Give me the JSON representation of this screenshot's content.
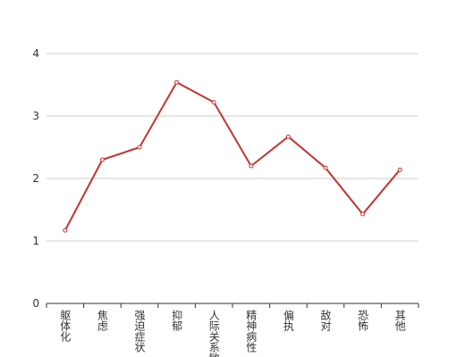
{
  "chart_data": {
    "type": "line",
    "categories": [
      "躯体化",
      "焦虑",
      "强迫症状",
      "抑郁",
      "人际关系敏感",
      "精神病性",
      "偏执",
      "敌对",
      "恐怖",
      "其他"
    ],
    "series": [
      {
        "color": "#c23531",
        "values": [
          1.17,
          2.3,
          2.5,
          3.54,
          3.22,
          2.2,
          2.67,
          2.17,
          1.43,
          2.14
        ]
      }
    ],
    "ylim": [
      0,
      4
    ],
    "yticks": [
      0,
      1,
      2,
      3,
      4
    ],
    "grid": true
  }
}
